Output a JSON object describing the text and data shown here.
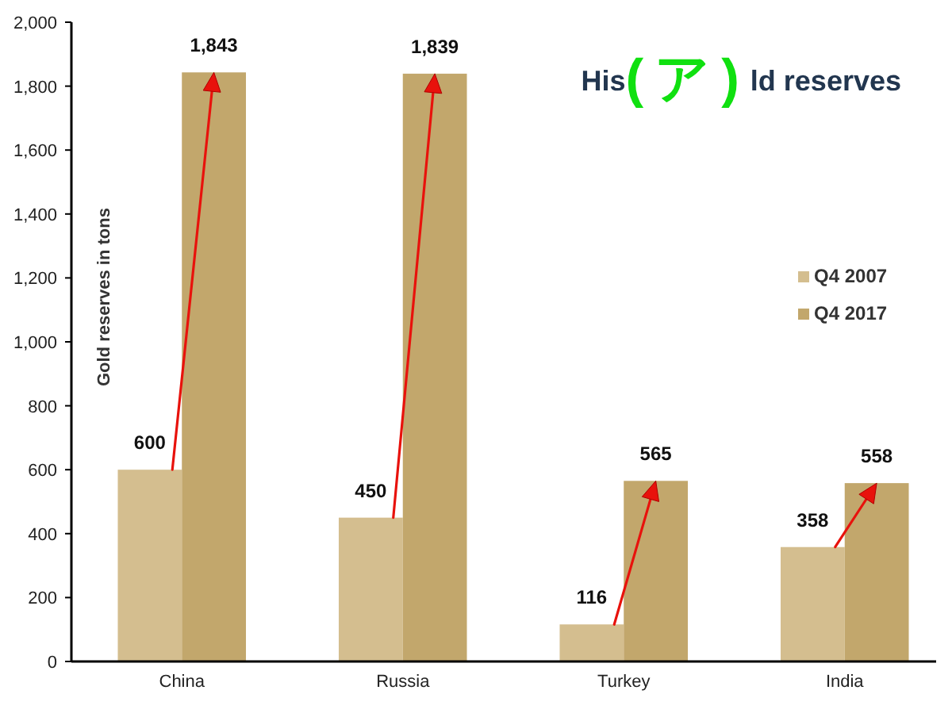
{
  "chart_data": {
    "type": "bar",
    "title": "His(ア)ld reserves",
    "ylabel": "Gold reserves in tons",
    "categories": [
      "China",
      "Russia",
      "Turkey",
      "India"
    ],
    "series": [
      {
        "name": "Q4 2007",
        "color": "#d4be8f",
        "values": [
          600,
          450,
          116,
          358
        ],
        "value_labels": [
          "600",
          "450",
          "116",
          "358"
        ]
      },
      {
        "name": "Q4 2017",
        "color": "#c2a76c",
        "values": [
          1843,
          1839,
          565,
          558
        ],
        "value_labels": [
          "1,843",
          "1,839",
          "565",
          "558"
        ]
      }
    ],
    "ylim": [
      0,
      2000
    ],
    "yticks": [
      0,
      200,
      400,
      600,
      800,
      {
        "value": 1000,
        "label": "1,000"
      },
      {
        "value": 1200,
        "label": "1,200"
      },
      {
        "value": 1400,
        "label": "1,400"
      },
      {
        "value": 1600,
        "label": "1,600"
      },
      {
        "value": 1800,
        "label": "1,800"
      },
      {
        "value": 2000,
        "label": "2,000"
      }
    ],
    "grid": false,
    "legend": "right"
  }
}
